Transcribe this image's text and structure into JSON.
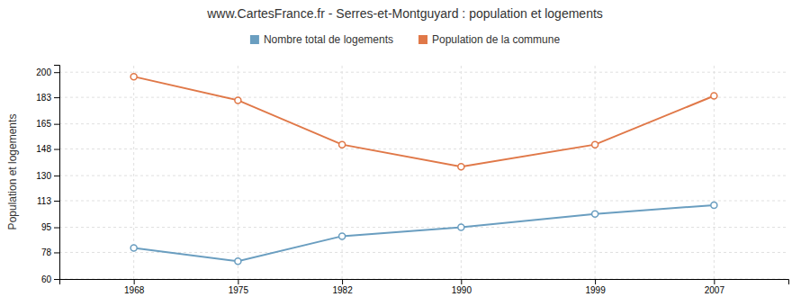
{
  "chart_data": {
    "type": "line",
    "title": "www.CartesFrance.fr - Serres-et-Montguyard : population et logements",
    "ylabel": "Population et logements",
    "x": [
      1968,
      1975,
      1982,
      1990,
      1999,
      2007
    ],
    "series": [
      {
        "name": "Nombre total de logements",
        "color": "#6a9ec0",
        "values": [
          81,
          72,
          89,
          95,
          104,
          110
        ]
      },
      {
        "name": "Population de la commune",
        "color": "#e07848",
        "values": [
          197,
          181,
          151,
          136,
          151,
          184
        ]
      }
    ],
    "marker": "circle",
    "xlim": [
      1963,
      2012
    ],
    "xticks": [
      1968,
      1975,
      1982,
      1990,
      1999,
      2007
    ],
    "ylim": [
      60,
      205
    ],
    "yticks": [
      60,
      78,
      95,
      113,
      130,
      148,
      165,
      183,
      200
    ],
    "grid": true,
    "legend": "top"
  }
}
